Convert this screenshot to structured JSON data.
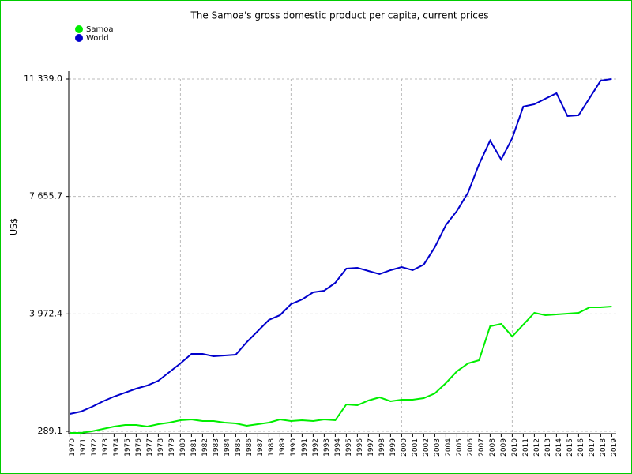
{
  "chart_data": {
    "type": "line",
    "title": "The Samoa's gross domestic product per capita, current prices",
    "y_label": "US$",
    "x": [
      1970,
      1971,
      1972,
      1973,
      1974,
      1975,
      1976,
      1977,
      1978,
      1979,
      1980,
      1981,
      1982,
      1983,
      1984,
      1985,
      1986,
      1987,
      1988,
      1989,
      1990,
      1991,
      1992,
      1993,
      1994,
      1995,
      1996,
      1997,
      1998,
      1999,
      2000,
      2001,
      2002,
      2003,
      2004,
      2005,
      2006,
      2007,
      2008,
      2009,
      2010,
      2011,
      2012,
      2013,
      2014,
      2015,
      2016,
      2017,
      2018,
      2019
    ],
    "series": [
      {
        "name": "Samoa",
        "color": "#00ee00",
        "values": [
          240,
          240,
          289,
          363,
          438,
          487,
          487,
          438,
          512,
          562,
          636,
          661,
          611,
          611,
          562,
          537,
          463,
          512,
          562,
          661,
          611,
          636,
          611,
          661,
          636,
          1132,
          1107,
          1256,
          1355,
          1231,
          1280,
          1280,
          1330,
          1478,
          1801,
          2172,
          2420,
          2519,
          3585,
          3659,
          3263,
          3635,
          4006,
          3932,
          3957,
          3981,
          4006,
          4180,
          4180,
          4204
        ]
      },
      {
        "name": "World",
        "color": "#0000cc",
        "values": [
          834,
          909,
          1057,
          1231,
          1379,
          1503,
          1627,
          1726,
          1875,
          2148,
          2420,
          2718,
          2718,
          2643,
          2668,
          2693,
          3089,
          3436,
          3783,
          3932,
          4279,
          4427,
          4650,
          4700,
          4948,
          5394,
          5419,
          5319,
          5220,
          5344,
          5443,
          5344,
          5518,
          6063,
          6757,
          7203,
          7773,
          8665,
          9408,
          8814,
          9483,
          10474,
          10548,
          10722,
          10895,
          10176,
          10201,
          10746,
          11291,
          11341
        ]
      }
    ],
    "xlim": [
      1969.9,
      2019.4
    ],
    "ylim": [
      215,
      12330
    ],
    "yticks": [
      {
        "value": 289.1,
        "label": "289.1"
      },
      {
        "value": 3972.4,
        "label": "3 972.4"
      },
      {
        "value": 7655.7,
        "label": "7 655.7"
      },
      {
        "value": 11339.0,
        "label": "11 339.0"
      }
    ],
    "grid": true,
    "legend": "top-left"
  }
}
